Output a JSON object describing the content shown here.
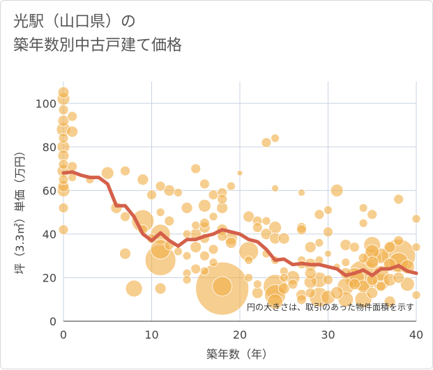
{
  "title_lines": [
    "光駅（山口県）の",
    "築年数別中古戸建て価格"
  ],
  "chart_data": {
    "type": "scatter",
    "title": "光駅（山口県）の築年数別中古戸建て価格",
    "xlabel": "築年数（年）",
    "ylabel": "坪（3.3㎡）単価（万円）",
    "xlim": [
      0,
      40
    ],
    "ylim": [
      0,
      110
    ],
    "x_ticks": [
      0,
      10,
      20,
      30,
      40
    ],
    "y_ticks": [
      0,
      20,
      40,
      60,
      80,
      100
    ],
    "grid": true,
    "annotation": "円の大きさは、取引のあった物件面積を示す",
    "colors": {
      "bubble": "#f0b04a",
      "line": "#d4604a",
      "grid": "#c9d3e3"
    },
    "series": [
      {
        "type": "bubble",
        "points": [
          [
            0,
            105,
            8
          ],
          [
            0,
            102,
            9
          ],
          [
            0,
            97,
            7
          ],
          [
            0,
            92,
            8
          ],
          [
            0,
            88,
            10
          ],
          [
            0,
            84,
            7
          ],
          [
            0,
            80,
            9
          ],
          [
            0,
            76,
            8
          ],
          [
            0,
            72,
            7
          ],
          [
            0,
            69,
            9
          ],
          [
            0,
            65,
            7
          ],
          [
            0,
            62,
            8
          ],
          [
            0,
            60,
            9
          ],
          [
            0,
            52,
            7
          ],
          [
            0,
            42,
            7
          ],
          [
            1,
            94,
            7
          ],
          [
            1,
            87,
            8
          ],
          [
            1,
            71,
            7
          ],
          [
            1,
            66,
            6
          ],
          [
            3,
            65,
            6
          ],
          [
            5,
            68,
            9
          ],
          [
            6,
            52,
            8
          ],
          [
            7,
            69,
            7
          ],
          [
            7,
            48,
            7
          ],
          [
            7,
            31,
            8
          ],
          [
            8,
            15,
            12
          ],
          [
            9,
            65,
            8
          ],
          [
            9,
            46,
            16
          ],
          [
            9,
            42,
            7
          ],
          [
            10,
            58,
            7
          ],
          [
            10,
            38,
            7
          ],
          [
            11,
            62,
            7
          ],
          [
            11,
            50,
            6
          ],
          [
            11,
            40,
            14
          ],
          [
            11,
            33,
            14
          ],
          [
            11,
            28,
            22
          ],
          [
            11,
            15,
            8
          ],
          [
            12,
            60,
            8
          ],
          [
            12,
            46,
            7
          ],
          [
            12,
            35,
            7
          ],
          [
            13,
            59,
            6
          ],
          [
            13,
            32,
            6
          ],
          [
            14,
            52,
            8
          ],
          [
            14,
            40,
            6
          ],
          [
            14,
            30,
            6
          ],
          [
            14,
            22,
            6
          ],
          [
            14,
            19,
            6
          ],
          [
            15,
            70,
            7
          ],
          [
            15,
            44,
            6
          ],
          [
            15,
            40,
            8
          ],
          [
            15,
            34,
            8
          ],
          [
            15,
            24,
            7
          ],
          [
            16,
            63,
            7
          ],
          [
            16,
            53,
            9
          ],
          [
            16,
            45,
            7
          ],
          [
            16,
            43,
            8
          ],
          [
            16,
            38,
            7
          ],
          [
            16,
            30,
            7
          ],
          [
            16,
            23,
            6
          ],
          [
            17,
            58,
            7
          ],
          [
            17,
            48,
            6
          ],
          [
            17,
            33,
            7
          ],
          [
            17,
            27,
            6
          ],
          [
            18,
            59,
            7
          ],
          [
            18,
            56,
            7
          ],
          [
            18,
            52,
            8
          ],
          [
            18,
            42,
            8
          ],
          [
            18,
            39,
            7
          ],
          [
            18,
            15,
            38
          ],
          [
            18,
            16,
            14
          ],
          [
            19,
            62,
            6
          ],
          [
            19,
            38,
            9
          ],
          [
            19,
            36,
            8
          ],
          [
            20,
            68,
            4
          ],
          [
            21,
            48,
            8
          ],
          [
            21,
            32,
            14
          ],
          [
            21,
            28,
            6
          ],
          [
            21,
            20,
            6
          ],
          [
            22,
            46,
            7
          ],
          [
            22,
            43,
            7
          ],
          [
            22,
            17,
            6
          ],
          [
            22,
            13,
            8
          ],
          [
            23,
            82,
            7
          ],
          [
            23,
            46,
            6
          ],
          [
            23,
            40,
            8
          ],
          [
            23,
            31,
            6
          ],
          [
            24,
            84,
            6
          ],
          [
            24,
            61,
            5
          ],
          [
            24,
            43,
            9
          ],
          [
            24,
            38,
            8
          ],
          [
            24,
            28,
            6
          ],
          [
            24,
            16,
            17
          ],
          [
            24,
            12,
            15
          ],
          [
            24,
            9,
            11
          ],
          [
            25,
            38,
            8
          ],
          [
            25,
            23,
            6
          ],
          [
            25,
            20,
            6
          ],
          [
            25,
            15,
            8
          ],
          [
            26,
            20,
            10
          ],
          [
            26,
            17,
            7
          ],
          [
            27,
            59,
            5
          ],
          [
            27,
            43,
            7
          ],
          [
            27,
            42,
            7
          ],
          [
            27,
            28,
            6
          ],
          [
            27,
            26,
            6
          ],
          [
            27,
            12,
            8
          ],
          [
            27,
            10,
            7
          ],
          [
            28,
            34,
            8
          ],
          [
            28,
            26,
            9
          ],
          [
            28,
            22,
            8
          ],
          [
            28,
            18,
            9
          ],
          [
            28,
            13,
            7
          ],
          [
            29,
            49,
            7
          ],
          [
            29,
            36,
            6
          ],
          [
            29,
            28,
            6
          ],
          [
            29,
            19,
            11
          ],
          [
            29,
            11,
            14
          ],
          [
            30,
            51,
            6
          ],
          [
            30,
            41,
            7
          ],
          [
            30,
            31,
            5
          ],
          [
            30,
            19,
            7
          ],
          [
            30,
            11,
            10
          ],
          [
            31,
            60,
            9
          ],
          [
            31,
            25,
            5
          ],
          [
            31,
            13,
            9
          ],
          [
            32,
            35,
            8
          ],
          [
            32,
            27,
            6
          ],
          [
            32,
            22,
            8
          ],
          [
            32,
            16,
            12
          ],
          [
            32,
            10,
            11
          ],
          [
            33,
            34,
            7
          ],
          [
            33,
            20,
            14
          ],
          [
            33,
            17,
            8
          ],
          [
            34,
            52,
            6
          ],
          [
            34,
            45,
            6
          ],
          [
            34,
            29,
            7
          ],
          [
            34,
            21,
            22
          ],
          [
            34,
            16,
            9
          ],
          [
            34,
            10,
            12
          ],
          [
            35,
            49,
            7
          ],
          [
            35,
            35,
            12
          ],
          [
            35,
            32,
            10
          ],
          [
            35,
            29,
            13
          ],
          [
            35,
            27,
            9
          ],
          [
            35,
            19,
            8
          ],
          [
            35,
            13,
            8
          ],
          [
            36,
            30,
            11
          ],
          [
            36,
            22,
            11
          ],
          [
            36,
            18,
            12
          ],
          [
            36,
            16,
            7
          ],
          [
            37,
            34,
            8
          ],
          [
            37,
            26,
            9
          ],
          [
            37,
            19,
            9
          ],
          [
            37,
            9,
            8
          ],
          [
            38,
            56,
            7
          ],
          [
            38,
            37,
            7
          ],
          [
            38,
            30,
            24
          ],
          [
            38,
            27,
            14
          ],
          [
            38,
            20,
            8
          ],
          [
            39,
            25,
            10
          ],
          [
            39,
            17,
            10
          ],
          [
            40,
            47,
            6
          ],
          [
            40,
            34,
            6
          ],
          [
            40,
            12,
            6
          ]
        ]
      },
      {
        "type": "line",
        "x": [
          0,
          1,
          2,
          3,
          4,
          5,
          6,
          7,
          8,
          9,
          10,
          11,
          12,
          13,
          14,
          15,
          16,
          17,
          18,
          19,
          20,
          21,
          22,
          23,
          24,
          25,
          26,
          27,
          28,
          29,
          30,
          31,
          32,
          33,
          34,
          35,
          36,
          37,
          38,
          39,
          40
        ],
        "y": [
          68,
          68.5,
          67,
          66,
          66,
          63,
          53,
          53,
          48,
          40,
          37,
          40.5,
          37,
          34.5,
          37.5,
          37.5,
          39,
          40,
          42,
          41,
          40,
          37.5,
          36.5,
          33,
          28,
          28.5,
          26,
          26.5,
          26,
          26,
          25,
          24,
          21,
          22,
          23.5,
          21,
          24,
          24,
          25.5,
          23,
          22
        ]
      }
    ]
  }
}
